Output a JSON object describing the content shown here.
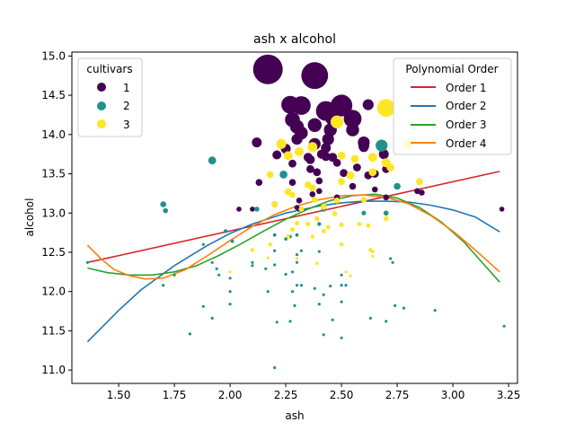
{
  "chart_data": {
    "type": "scatter",
    "title": "ash x alcohol",
    "xlabel": "ash",
    "ylabel": "alcohol",
    "xlim": [
      1.29,
      3.29
    ],
    "ylim": [
      10.83,
      15.05
    ],
    "xticks": [
      1.5,
      1.75,
      2.0,
      2.25,
      2.5,
      2.75,
      3.0,
      3.25
    ],
    "yticks": [
      11.0,
      11.5,
      12.0,
      12.5,
      13.0,
      13.5,
      14.0,
      14.5,
      15.0
    ],
    "grid": false,
    "scatter_legend": {
      "title": "cultivars",
      "placement": "top-left",
      "entries": [
        {
          "label": "1",
          "color": "#440154"
        },
        {
          "label": "2",
          "color": "#21918c"
        },
        {
          "label": "3",
          "color": "#fde725"
        }
      ]
    },
    "line_legend": {
      "title": "Polynomial Order",
      "placement": "top-right",
      "entries": [
        {
          "label": "Order 1",
          "color": "#d62728"
        },
        {
          "label": "Order 2",
          "color": "#1f77b4"
        },
        {
          "label": "Order 3",
          "color": "#2ca02c"
        },
        {
          "label": "Order 4",
          "color": "#ff7f0e"
        }
      ]
    },
    "fit_lines": [
      {
        "name": "Order 1",
        "color": "#d62728",
        "x": [
          1.36,
          3.21
        ],
        "y": [
          12.37,
          13.53
        ]
      },
      {
        "name": "Order 2",
        "color": "#1f77b4",
        "x": [
          1.36,
          1.5,
          1.6,
          1.75,
          1.9,
          2.0,
          2.1,
          2.25,
          2.4,
          2.5,
          2.6,
          2.7,
          2.8,
          2.9,
          3.0,
          3.1,
          3.21
        ],
        "y": [
          11.36,
          11.76,
          12.02,
          12.33,
          12.59,
          12.74,
          12.86,
          13.0,
          13.09,
          13.13,
          13.15,
          13.15,
          13.14,
          13.1,
          13.04,
          12.95,
          12.76
        ]
      },
      {
        "name": "Order 3",
        "color": "#2ca02c",
        "x": [
          1.36,
          1.45,
          1.55,
          1.65,
          1.75,
          1.85,
          1.95,
          2.05,
          2.15,
          2.25,
          2.35,
          2.45,
          2.55,
          2.65,
          2.75,
          2.85,
          2.95,
          3.05,
          3.15,
          3.21
        ],
        "y": [
          12.3,
          12.24,
          12.21,
          12.21,
          12.25,
          12.33,
          12.46,
          12.61,
          12.77,
          12.92,
          13.05,
          13.16,
          13.22,
          13.24,
          13.19,
          13.07,
          12.88,
          12.63,
          12.31,
          12.12
        ]
      },
      {
        "name": "Order 4",
        "color": "#ff7f0e",
        "x": [
          1.36,
          1.42,
          1.48,
          1.55,
          1.62,
          1.7,
          1.8,
          1.9,
          2.0,
          2.1,
          2.2,
          2.3,
          2.4,
          2.5,
          2.6,
          2.7,
          2.8,
          2.9,
          3.0,
          3.1,
          3.21
        ],
        "y": [
          12.59,
          12.42,
          12.28,
          12.2,
          12.16,
          12.17,
          12.28,
          12.46,
          12.65,
          12.83,
          12.98,
          13.09,
          13.17,
          13.22,
          13.23,
          13.2,
          13.12,
          12.97,
          12.77,
          12.53,
          12.25
        ]
      }
    ],
    "series": [
      {
        "name": "1",
        "color": "#440154",
        "points": [
          [
            2.17,
            14.83,
            3
          ],
          [
            2.38,
            14.75,
            2.7
          ],
          [
            2.27,
            14.38,
            1.8
          ],
          [
            2.32,
            14.37,
            1.9
          ],
          [
            2.43,
            14.3,
            2.0
          ],
          [
            2.5,
            14.37,
            2.2
          ],
          [
            2.46,
            14.22,
            1.6
          ],
          [
            2.55,
            14.2,
            1.8
          ],
          [
            2.62,
            14.38,
            1.1
          ],
          [
            2.28,
            14.19,
            1.5
          ],
          [
            2.3,
            14.1,
            1.4
          ],
          [
            2.38,
            14.12,
            1.4
          ],
          [
            2.32,
            14.02,
            1.3
          ],
          [
            2.45,
            14.06,
            1.3
          ],
          [
            2.55,
            14.06,
            1.3
          ],
          [
            2.6,
            13.9,
            1.2
          ],
          [
            2.6,
            13.86,
            1.1
          ],
          [
            2.44,
            13.94,
            1.2
          ],
          [
            2.38,
            13.88,
            1.2
          ],
          [
            2.3,
            13.94,
            1.1
          ],
          [
            2.12,
            13.9,
            1.0
          ],
          [
            2.25,
            13.82,
            1.0
          ],
          [
            2.43,
            13.83,
            1.0
          ],
          [
            2.6,
            13.84,
            1.0
          ],
          [
            2.69,
            13.75,
            1.0
          ],
          [
            2.41,
            13.75,
            0.9
          ],
          [
            2.21,
            13.74,
            0.9
          ],
          [
            2.35,
            13.71,
            0.9
          ],
          [
            2.43,
            13.72,
            0.9
          ],
          [
            2.46,
            13.71,
            0.9
          ],
          [
            2.36,
            13.68,
            0.9
          ],
          [
            2.48,
            13.64,
            0.8
          ],
          [
            2.28,
            13.63,
            0.8
          ],
          [
            2.57,
            13.58,
            0.8
          ],
          [
            2.7,
            13.56,
            0.8
          ],
          [
            2.36,
            13.56,
            0.8
          ],
          [
            2.39,
            13.52,
            0.8
          ],
          [
            2.51,
            13.51,
            0.8
          ],
          [
            2.65,
            13.5,
            0.8
          ],
          [
            2.62,
            13.48,
            0.8
          ],
          [
            2.4,
            13.41,
            0.7
          ],
          [
            2.28,
            13.39,
            0.7
          ],
          [
            2.13,
            13.39,
            0.7
          ],
          [
            2.55,
            13.34,
            0.7
          ],
          [
            2.65,
            13.3,
            0.6
          ],
          [
            2.84,
            13.28,
            0.6
          ],
          [
            2.4,
            13.28,
            0.6
          ],
          [
            2.37,
            13.24,
            0.6
          ],
          [
            2.86,
            13.26,
            0.6
          ],
          [
            2.48,
            13.2,
            0.6
          ],
          [
            2.7,
            13.2,
            0.6
          ],
          [
            2.31,
            13.16,
            0.6
          ],
          [
            2.2,
            13.11,
            0.6
          ],
          [
            2.04,
            13.05,
            0.5
          ],
          [
            2.1,
            13.05,
            0.5
          ],
          [
            3.22,
            13.05,
            0.5
          ],
          [
            2.31,
            13.05,
            0.5
          ],
          [
            2.3,
            13.07,
            0.5
          ]
        ]
      },
      {
        "name": "2",
        "color": "#21918c",
        "points": [
          [
            2.68,
            13.86,
            1.2
          ],
          [
            2.24,
            13.49,
            0.8
          ],
          [
            1.92,
            13.67,
            0.8
          ],
          [
            2.75,
            13.34,
            0.7
          ],
          [
            1.7,
            13.11,
            0.6
          ],
          [
            1.71,
            13.03,
            0.5
          ],
          [
            2.42,
            13.05,
            0.5
          ],
          [
            2.6,
            13.0,
            0.45
          ],
          [
            2.12,
            13.05,
            0.5
          ],
          [
            2.7,
            13.0,
            0.5
          ],
          [
            1.98,
            12.77,
            0.4
          ],
          [
            2.4,
            12.86,
            0.4
          ],
          [
            2.3,
            12.72,
            0.35
          ],
          [
            2.2,
            12.72,
            0.35
          ],
          [
            2.27,
            12.7,
            0.35
          ],
          [
            2.25,
            12.67,
            0.35
          ],
          [
            2.01,
            12.64,
            0.35
          ],
          [
            2.32,
            12.52,
            0.3
          ],
          [
            2.4,
            12.51,
            0.3
          ],
          [
            2.2,
            12.52,
            0.3
          ],
          [
            2.3,
            12.47,
            0.3
          ],
          [
            1.88,
            12.6,
            0.3
          ],
          [
            1.92,
            12.37,
            0.3
          ],
          [
            2.72,
            12.42,
            0.3
          ],
          [
            2.73,
            12.37,
            0.3
          ],
          [
            2.1,
            12.37,
            0.3
          ],
          [
            2.3,
            12.37,
            0.3
          ],
          [
            2.2,
            12.34,
            0.3
          ],
          [
            2.16,
            12.29,
            0.3
          ],
          [
            1.36,
            12.37,
            0.3
          ],
          [
            2.1,
            12.33,
            0.3
          ],
          [
            2.28,
            12.25,
            0.3
          ],
          [
            1.94,
            12.29,
            0.3
          ],
          [
            1.95,
            12.21,
            0.25
          ],
          [
            2.25,
            12.22,
            0.25
          ],
          [
            2.5,
            12.21,
            0.25
          ],
          [
            1.75,
            12.21,
            0.25
          ],
          [
            2.0,
            12.17,
            0.25
          ],
          [
            2.32,
            12.08,
            0.25
          ],
          [
            2.5,
            12.08,
            0.25
          ],
          [
            2.52,
            12.08,
            0.25
          ],
          [
            2.3,
            12.08,
            0.25
          ],
          [
            2.45,
            12.07,
            0.25
          ],
          [
            2.38,
            12.04,
            0.25
          ],
          [
            2.17,
            12.0,
            0.25
          ],
          [
            1.7,
            12.08,
            0.25
          ],
          [
            2.0,
            12.0,
            0.25
          ],
          [
            2.28,
            12.0,
            0.25
          ],
          [
            2.42,
            11.96,
            0.25
          ],
          [
            2.5,
            11.87,
            0.2
          ],
          [
            2.74,
            11.82,
            0.2
          ],
          [
            1.88,
            11.81,
            0.2
          ],
          [
            2.4,
            11.84,
            0.2
          ],
          [
            2.78,
            11.79,
            0.2
          ],
          [
            2.92,
            11.76,
            0.2
          ],
          [
            2.29,
            11.82,
            0.2
          ],
          [
            2.0,
            11.84,
            0.2
          ],
          [
            2.63,
            11.66,
            0.2
          ],
          [
            1.92,
            11.66,
            0.2
          ],
          [
            2.7,
            11.62,
            0.2
          ],
          [
            2.27,
            11.62,
            0.2
          ],
          [
            2.46,
            11.64,
            0.2
          ],
          [
            3.23,
            11.56,
            0.2
          ],
          [
            2.21,
            11.61,
            0.2
          ],
          [
            1.82,
            11.46,
            0.2
          ],
          [
            2.42,
            11.45,
            0.2
          ],
          [
            2.5,
            11.41,
            0.2
          ],
          [
            2.2,
            11.03,
            0.2
          ]
        ]
      },
      {
        "name": "3",
        "color": "#fde725",
        "points": [
          [
            2.7,
            14.34,
            1.8
          ],
          [
            2.48,
            14.16,
            1.3
          ],
          [
            2.8,
            13.88,
            1.0
          ],
          [
            2.23,
            13.88,
            1.0
          ],
          [
            2.37,
            13.84,
            1.0
          ],
          [
            2.31,
            13.78,
            0.9
          ],
          [
            2.26,
            13.73,
            0.9
          ],
          [
            2.64,
            13.71,
            0.9
          ],
          [
            2.7,
            13.64,
            0.9
          ],
          [
            2.72,
            13.58,
            0.8
          ],
          [
            2.56,
            13.69,
            0.8
          ],
          [
            2.5,
            13.73,
            0.8
          ],
          [
            2.64,
            13.52,
            0.8
          ],
          [
            2.54,
            13.48,
            0.8
          ],
          [
            2.18,
            13.49,
            0.7
          ],
          [
            2.85,
            13.4,
            0.7
          ],
          [
            2.35,
            13.36,
            0.7
          ],
          [
            2.5,
            13.4,
            0.7
          ],
          [
            2.37,
            13.32,
            0.7
          ],
          [
            2.26,
            13.27,
            0.7
          ],
          [
            2.28,
            13.23,
            0.6
          ],
          [
            2.38,
            13.17,
            0.6
          ],
          [
            2.6,
            13.17,
            0.6
          ],
          [
            2.48,
            13.16,
            0.6
          ],
          [
            2.42,
            13.08,
            0.6
          ],
          [
            2.2,
            13.11,
            0.6
          ],
          [
            2.32,
            13.05,
            0.55
          ],
          [
            2.47,
            12.99,
            0.5
          ],
          [
            2.7,
            12.93,
            0.5
          ],
          [
            2.39,
            12.93,
            0.5
          ],
          [
            2.3,
            12.87,
            0.45
          ],
          [
            2.5,
            12.85,
            0.45
          ],
          [
            2.58,
            12.86,
            0.45
          ],
          [
            2.62,
            12.84,
            0.45
          ],
          [
            2.35,
            12.86,
            0.45
          ],
          [
            2.44,
            12.82,
            0.45
          ],
          [
            2.28,
            12.79,
            0.45
          ],
          [
            2.42,
            12.77,
            0.45
          ],
          [
            2.26,
            12.7,
            0.4
          ],
          [
            2.37,
            12.7,
            0.4
          ],
          [
            2.5,
            12.6,
            0.4
          ],
          [
            2.18,
            12.6,
            0.4
          ],
          [
            2.63,
            12.53,
            0.4
          ],
          [
            2.64,
            12.51,
            0.35
          ],
          [
            2.1,
            12.53,
            0.4
          ],
          [
            2.39,
            12.36,
            0.35
          ],
          [
            2.52,
            12.25,
            0.3
          ],
          [
            2.0,
            12.25,
            0.3
          ],
          [
            2.64,
            12.45,
            0.3
          ],
          [
            2.54,
            12.2,
            0.3
          ],
          [
            2.3,
            12.42,
            0.3
          ],
          [
            2.17,
            12.43,
            0.3
          ]
        ]
      }
    ]
  }
}
